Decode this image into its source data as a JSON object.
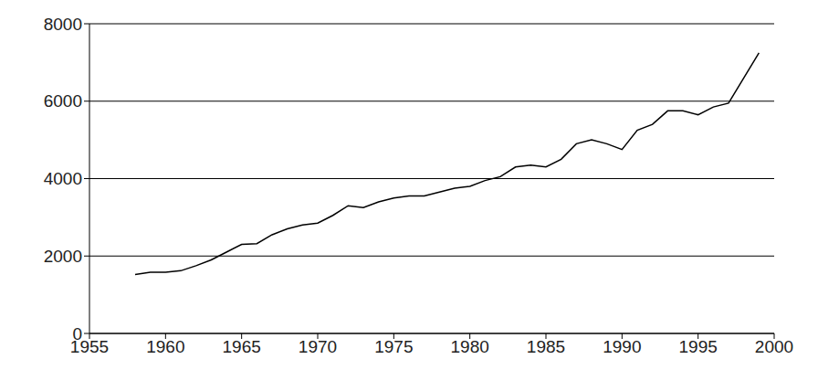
{
  "chart_data": {
    "type": "line",
    "x": [
      1958,
      1959,
      1960,
      1961,
      1962,
      1963,
      1964,
      1965,
      1966,
      1967,
      1968,
      1969,
      1970,
      1971,
      1972,
      1973,
      1974,
      1975,
      1976,
      1977,
      1978,
      1979,
      1980,
      1981,
      1982,
      1983,
      1984,
      1985,
      1986,
      1987,
      1988,
      1989,
      1990,
      1991,
      1992,
      1993,
      1994,
      1995,
      1996,
      1997,
      1998,
      1999
    ],
    "values": [
      1520,
      1580,
      1580,
      1620,
      1750,
      1900,
      2100,
      2300,
      2320,
      2550,
      2700,
      2800,
      2850,
      3050,
      3300,
      3250,
      3400,
      3500,
      3550,
      3550,
      3650,
      3750,
      3800,
      3950,
      4050,
      4300,
      4350,
      4300,
      4500,
      4900,
      5000,
      4900,
      4750,
      5250,
      5400,
      5750,
      5750,
      5650,
      5850,
      5950,
      6600,
      7250
    ],
    "color": "#000000",
    "xlim": [
      1955,
      2000
    ],
    "xticks": [
      1955,
      1960,
      1965,
      1970,
      1975,
      1980,
      1985,
      1990,
      1995,
      2000
    ],
    "ylim": [
      0,
      8000
    ],
    "yticks": [
      0,
      2000,
      4000,
      6000,
      8000
    ],
    "grid": true
  }
}
